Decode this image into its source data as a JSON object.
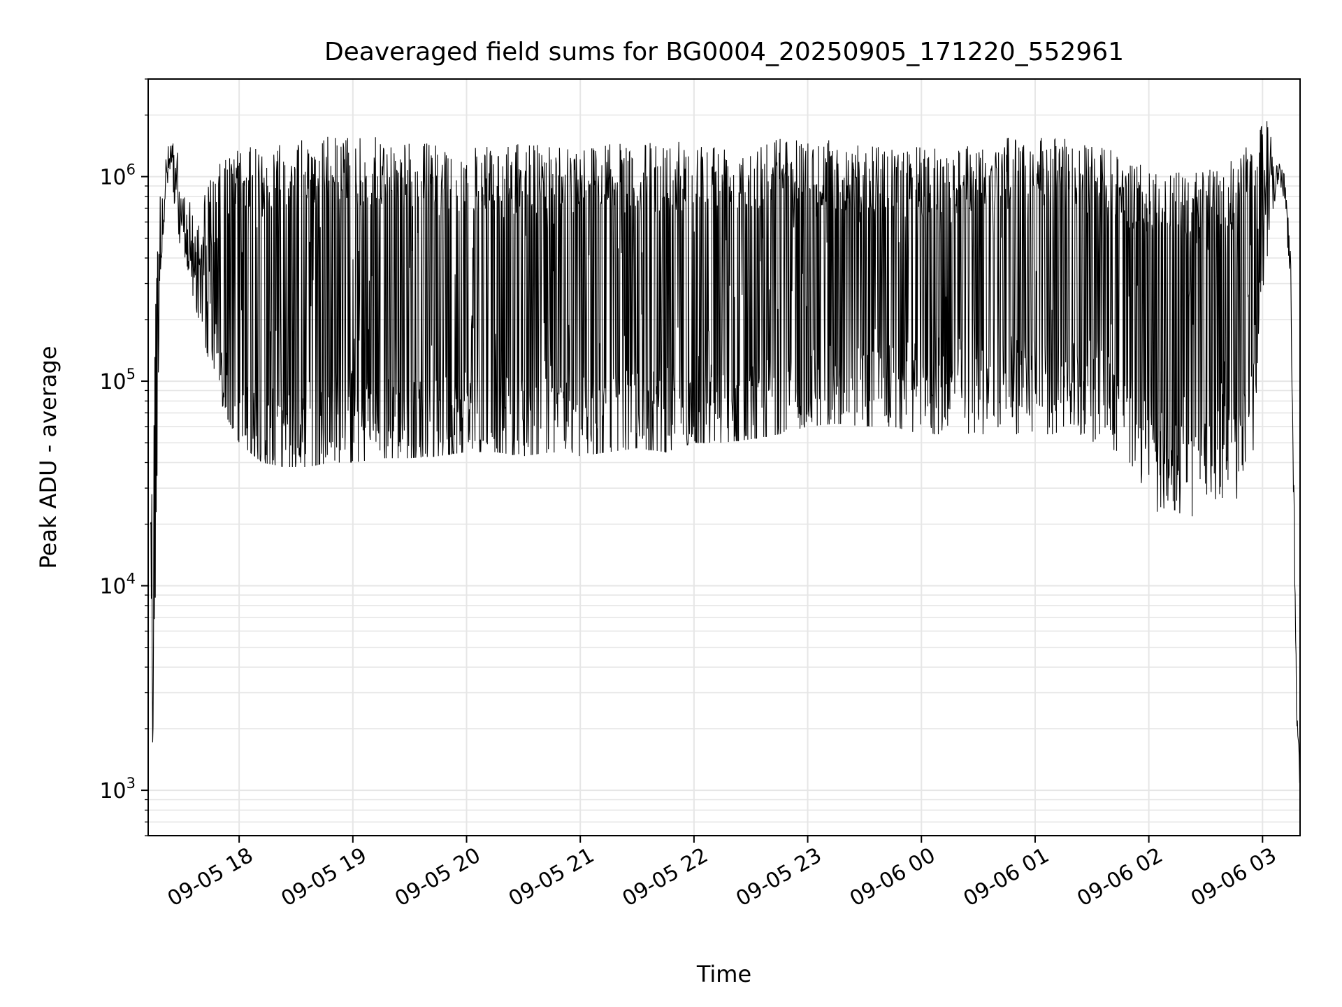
{
  "chart_data": {
    "type": "line",
    "title": "Deaveraged field sums for BG0004_20250905_171220_552961",
    "xlabel": "Time",
    "ylabel": "Peak ADU - average",
    "yscale": "log",
    "ylim": [
      600,
      3000000
    ],
    "xlim_hours": [
      17.2,
      27.33
    ],
    "grid": true,
    "line_color": "#000000",
    "y_ticks": [
      {
        "value": 1000,
        "base": "10",
        "exp": "3"
      },
      {
        "value": 10000,
        "base": "10",
        "exp": "4"
      },
      {
        "value": 100000,
        "base": "10",
        "exp": "5"
      },
      {
        "value": 1000000,
        "base": "10",
        "exp": "6"
      }
    ],
    "x_ticks": [
      {
        "hour": 18,
        "label": "09-05 18"
      },
      {
        "hour": 19,
        "label": "09-05 19"
      },
      {
        "hour": 20,
        "label": "09-05 20"
      },
      {
        "hour": 21,
        "label": "09-05 21"
      },
      {
        "hour": 22,
        "label": "09-05 22"
      },
      {
        "hour": 23,
        "label": "09-05 23"
      },
      {
        "hour": 24,
        "label": "09-06 00"
      },
      {
        "hour": 25,
        "label": "09-06 01"
      },
      {
        "hour": 26,
        "label": "09-06 02"
      },
      {
        "hour": 27,
        "label": "09-06 03"
      }
    ],
    "series": [
      {
        "name": "Deaveraged field sums",
        "envelope": {
          "hours": [
            17.22,
            17.24,
            17.27,
            17.3,
            17.35,
            17.4,
            17.45,
            17.5,
            17.55,
            17.6,
            17.7,
            17.8,
            17.9,
            18.0,
            18.2,
            18.4,
            18.6,
            18.8,
            19.0,
            19.25,
            19.5,
            19.75,
            20.0,
            20.25,
            20.5,
            20.75,
            21.0,
            21.25,
            21.5,
            21.75,
            22.0,
            22.25,
            22.5,
            22.75,
            23.0,
            23.25,
            23.5,
            23.75,
            24.0,
            24.25,
            24.5,
            24.75,
            25.0,
            25.25,
            25.5,
            25.75,
            25.9,
            26.0,
            26.2,
            26.4,
            26.6,
            26.8,
            26.95,
            27.05,
            27.1,
            27.15,
            27.2,
            27.25,
            27.3,
            27.33
          ],
          "low": [
            20000,
            1600,
            15000,
            300000,
            700000,
            900000,
            500000,
            450000,
            350000,
            250000,
            150000,
            90000,
            65000,
            50000,
            40000,
            38000,
            38000,
            40000,
            40000,
            42000,
            42000,
            43000,
            45000,
            45000,
            43000,
            45000,
            43000,
            45000,
            47000,
            45000,
            50000,
            50000,
            52000,
            55000,
            60000,
            62000,
            60000,
            60000,
            55000,
            55000,
            55000,
            55000,
            55000,
            55000,
            50000,
            45000,
            30000,
            22000,
            18000,
            16000,
            18000,
            22000,
            30000,
            400000,
            700000,
            900000,
            700000,
            200000,
            2200,
            900
          ],
          "high": [
            60000,
            55000,
            400000,
            900000,
            1300000,
            1600000,
            1400000,
            900000,
            800000,
            700000,
            900000,
            1100000,
            1300000,
            1400000,
            1400000,
            1500000,
            1550000,
            1600000,
            1600000,
            1550000,
            1500000,
            1450000,
            1400000,
            1400000,
            1450000,
            1500000,
            1500000,
            1450000,
            1450000,
            1500000,
            1500000,
            1500000,
            1550000,
            1600000,
            1600000,
            1500000,
            1450000,
            1400000,
            1400000,
            1450000,
            1500000,
            1550000,
            1600000,
            1550000,
            1450000,
            1300000,
            1200000,
            1100000,
            1050000,
            1050000,
            1100000,
            1300000,
            1700000,
            1900000,
            1500000,
            1200000,
            1000000,
            400000,
            3000,
            1200
          ],
          "baseline": [
            20000,
            1600,
            15000,
            300000,
            800000,
            1000000,
            600000,
            500000,
            400000,
            300000,
            200000,
            120000,
            80000,
            60000,
            55000,
            55000,
            60000,
            60000,
            65000,
            65000,
            65000,
            65000,
            65000,
            65000,
            65000,
            65000,
            65000,
            65000,
            70000,
            70000,
            70000,
            70000,
            75000,
            80000,
            85000,
            90000,
            90000,
            90000,
            95000,
            100000,
            100000,
            100000,
            100000,
            100000,
            95000,
            80000,
            60000,
            45000,
            40000,
            40000,
            45000,
            55000,
            150000,
            800000,
            1000000,
            1000000,
            900000,
            300000,
            2500,
            1000
          ]
        }
      }
    ]
  }
}
